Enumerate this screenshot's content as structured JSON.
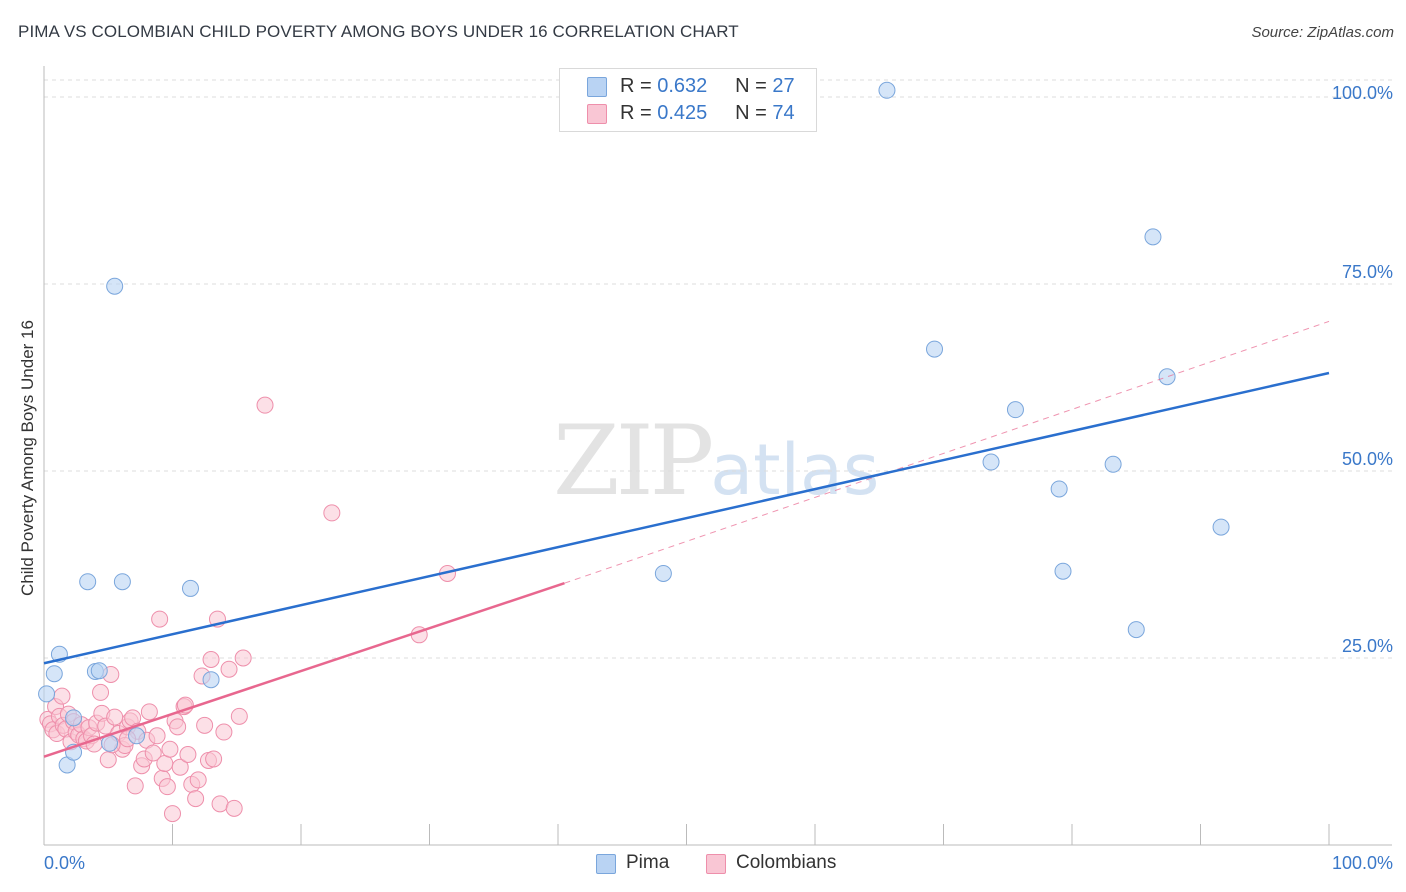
{
  "title": "PIMA VS COLOMBIAN CHILD POVERTY AMONG BOYS UNDER 16 CORRELATION CHART",
  "source": "Source: ZipAtlas.com",
  "watermark": {
    "zip": "ZIP",
    "atlas": "atlas"
  },
  "legend": {
    "r_label": "R =",
    "n_label": "N =",
    "rows": [
      {
        "r": "0.632",
        "n": "27"
      },
      {
        "r": "0.425",
        "n": "74"
      }
    ]
  },
  "bottom_legend": [
    "Pima",
    "Colombians"
  ],
  "colors": {
    "pima_fill": "#b9d3f3",
    "pima_stroke": "#7aa6dc",
    "pima_line": "#2a6fce",
    "col_fill": "#f9c6d4",
    "col_stroke": "#ee8fab",
    "col_line": "#e8678f",
    "grid": "#dcdcdc",
    "axis_text": "#3a78c9"
  },
  "chart_data": {
    "type": "scatter",
    "title": "PIMA VS COLOMBIAN CHILD POVERTY AMONG BOYS UNDER 16 CORRELATION CHART",
    "xlabel": "",
    "ylabel": "Child Poverty Among Boys Under 16",
    "xlim": [
      0,
      100
    ],
    "ylim": [
      0,
      100
    ],
    "x_tick_labels": [
      "0.0%",
      "100.0%"
    ],
    "y_tick_labels": [
      "25.0%",
      "50.0%",
      "75.0%",
      "100.0%"
    ],
    "y_ticks": [
      25,
      50,
      75,
      100
    ],
    "series": [
      {
        "name": "Pima",
        "r": 0.632,
        "n": 27,
        "trend": {
          "x0": 0,
          "y0": 24.3,
          "x1": 100,
          "y1": 63.1
        },
        "points": [
          [
            0.2,
            20.2
          ],
          [
            0.8,
            22.9
          ],
          [
            1.2,
            25.5
          ],
          [
            1.8,
            10.7
          ],
          [
            2.3,
            17.0
          ],
          [
            2.3,
            12.4
          ],
          [
            3.4,
            35.2
          ],
          [
            4.0,
            23.2
          ],
          [
            4.3,
            23.3
          ],
          [
            5.1,
            13.6
          ],
          [
            5.5,
            74.7
          ],
          [
            6.1,
            35.2
          ],
          [
            7.2,
            14.6
          ],
          [
            11.4,
            34.3
          ],
          [
            13.0,
            22.1
          ],
          [
            48.2,
            36.3
          ],
          [
            65.6,
            100.9
          ],
          [
            69.3,
            66.3
          ],
          [
            73.7,
            51.2
          ],
          [
            75.6,
            58.2
          ],
          [
            79.0,
            47.6
          ],
          [
            79.3,
            36.6
          ],
          [
            83.2,
            50.9
          ],
          [
            85.0,
            28.8
          ],
          [
            86.3,
            81.3
          ],
          [
            87.4,
            62.6
          ],
          [
            91.6,
            42.5
          ]
        ]
      },
      {
        "name": "Colombians",
        "r": 0.425,
        "n": 74,
        "trend": {
          "x0": 0,
          "y0": 11.8,
          "x1": 40.5,
          "y1": 35.0,
          "dash_x1": 100,
          "dash_y1": 70.0
        },
        "points": [
          [
            0.3,
            16.8
          ],
          [
            0.5,
            16.2
          ],
          [
            0.7,
            15.4
          ],
          [
            0.9,
            18.5
          ],
          [
            1.0,
            14.9
          ],
          [
            1.2,
            17.2
          ],
          [
            1.4,
            19.9
          ],
          [
            1.5,
            16.0
          ],
          [
            1.7,
            15.5
          ],
          [
            1.9,
            17.5
          ],
          [
            2.1,
            13.8
          ],
          [
            2.3,
            16.5
          ],
          [
            2.5,
            15.1
          ],
          [
            2.7,
            14.7
          ],
          [
            2.9,
            16.1
          ],
          [
            3.1,
            14.2
          ],
          [
            3.3,
            13.9
          ],
          [
            3.5,
            15.7
          ],
          [
            3.7,
            14.6
          ],
          [
            3.9,
            13.5
          ],
          [
            4.1,
            16.3
          ],
          [
            4.4,
            20.4
          ],
          [
            4.5,
            17.6
          ],
          [
            4.8,
            15.9
          ],
          [
            5.0,
            11.4
          ],
          [
            5.2,
            22.8
          ],
          [
            5.5,
            17.1
          ],
          [
            5.8,
            14.9
          ],
          [
            6.1,
            12.8
          ],
          [
            6.3,
            13.3
          ],
          [
            6.5,
            15.8
          ],
          [
            6.7,
            16.6
          ],
          [
            6.9,
            17.0
          ],
          [
            7.1,
            7.9
          ],
          [
            7.3,
            15.2
          ],
          [
            7.6,
            10.6
          ],
          [
            7.8,
            11.5
          ],
          [
            8.0,
            14.0
          ],
          [
            8.2,
            17.8
          ],
          [
            8.5,
            12.3
          ],
          [
            8.8,
            14.6
          ],
          [
            9.0,
            30.2
          ],
          [
            9.2,
            8.9
          ],
          [
            9.4,
            10.9
          ],
          [
            9.6,
            7.8
          ],
          [
            9.8,
            12.8
          ],
          [
            10.0,
            4.2
          ],
          [
            10.2,
            16.6
          ],
          [
            10.4,
            15.8
          ],
          [
            10.6,
            10.4
          ],
          [
            10.9,
            18.5
          ],
          [
            11.0,
            18.7
          ],
          [
            11.2,
            12.1
          ],
          [
            11.5,
            8.1
          ],
          [
            11.8,
            6.2
          ],
          [
            12.0,
            8.7
          ],
          [
            12.3,
            22.6
          ],
          [
            12.5,
            16.0
          ],
          [
            12.8,
            11.3
          ],
          [
            13.0,
            24.8
          ],
          [
            13.2,
            11.5
          ],
          [
            13.5,
            30.2
          ],
          [
            13.7,
            5.5
          ],
          [
            14.0,
            15.1
          ],
          [
            14.4,
            23.5
          ],
          [
            14.8,
            4.9
          ],
          [
            15.2,
            17.2
          ],
          [
            15.5,
            25.0
          ],
          [
            17.2,
            58.8
          ],
          [
            22.4,
            44.4
          ],
          [
            31.4,
            36.3
          ],
          [
            29.2,
            28.1
          ],
          [
            5.3,
            13.4
          ],
          [
            6.5,
            14.2
          ]
        ]
      }
    ]
  }
}
